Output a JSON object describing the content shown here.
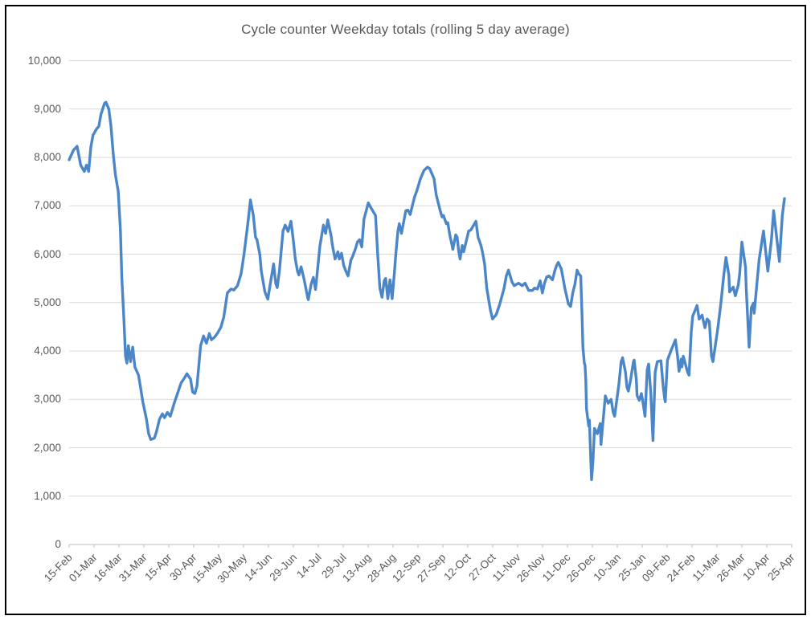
{
  "chart_data": {
    "type": "line",
    "title": "Cycle counter Weekday totals (rolling 5 day average)",
    "xlabel": "",
    "ylabel": "",
    "ylim": [
      0,
      10000
    ],
    "y_tick_labels": [
      "0",
      "1,000",
      "2,000",
      "3,000",
      "4,000",
      "5,000",
      "6,000",
      "7,000",
      "8,000",
      "9,000",
      "10,000"
    ],
    "x_tick_labels": [
      "15-Feb",
      "01-Mar",
      "16-Mar",
      "31-Mar",
      "15-Apr",
      "30-Apr",
      "15-May",
      "30-May",
      "14-Jun",
      "29-Jun",
      "14-Jul",
      "29-Jul",
      "13-Aug",
      "28-Aug",
      "12-Sep",
      "27-Sep",
      "12-Oct",
      "27-Oct",
      "11-Nov",
      "26-Nov",
      "11-Dec",
      "26-Dec",
      "10-Jan",
      "25-Jan",
      "09-Feb",
      "24-Feb",
      "11-Mar",
      "26-Mar",
      "10-Apr",
      "25-Apr"
    ],
    "grid": true,
    "legend_position": "none",
    "colors": {
      "line": "#4a86c8",
      "grid": "#d9d9d9",
      "axis": "#bfbfbf",
      "text": "#595959",
      "frame": "#000000"
    },
    "series": [
      {
        "points": [
          [
            0.0,
            7950
          ],
          [
            0.006,
            8150
          ],
          [
            0.011,
            8230
          ],
          [
            0.016,
            7840
          ],
          [
            0.021,
            7710
          ],
          [
            0.024,
            7840
          ],
          [
            0.027,
            7710
          ],
          [
            0.03,
            8210
          ],
          [
            0.033,
            8460
          ],
          [
            0.038,
            8590
          ],
          [
            0.041,
            8640
          ],
          [
            0.044,
            8890
          ],
          [
            0.049,
            9120
          ],
          [
            0.051,
            9140
          ],
          [
            0.055,
            9000
          ],
          [
            0.058,
            8640
          ],
          [
            0.061,
            8090
          ],
          [
            0.064,
            7650
          ],
          [
            0.068,
            7300
          ],
          [
            0.071,
            6500
          ],
          [
            0.073,
            5500
          ],
          [
            0.076,
            4600
          ],
          [
            0.078,
            3900
          ],
          [
            0.08,
            3750
          ],
          [
            0.082,
            4110
          ],
          [
            0.085,
            3780
          ],
          [
            0.088,
            4080
          ],
          [
            0.091,
            3670
          ],
          [
            0.096,
            3500
          ],
          [
            0.099,
            3230
          ],
          [
            0.102,
            2950
          ],
          [
            0.107,
            2590
          ],
          [
            0.11,
            2290
          ],
          [
            0.113,
            2170
          ],
          [
            0.118,
            2200
          ],
          [
            0.121,
            2340
          ],
          [
            0.125,
            2590
          ],
          [
            0.129,
            2700
          ],
          [
            0.132,
            2620
          ],
          [
            0.136,
            2730
          ],
          [
            0.14,
            2650
          ],
          [
            0.146,
            2950
          ],
          [
            0.149,
            3080
          ],
          [
            0.155,
            3340
          ],
          [
            0.16,
            3450
          ],
          [
            0.163,
            3530
          ],
          [
            0.168,
            3420
          ],
          [
            0.171,
            3150
          ],
          [
            0.174,
            3120
          ],
          [
            0.177,
            3280
          ],
          [
            0.18,
            3780
          ],
          [
            0.182,
            4110
          ],
          [
            0.186,
            4310
          ],
          [
            0.19,
            4160
          ],
          [
            0.194,
            4360
          ],
          [
            0.197,
            4230
          ],
          [
            0.201,
            4280
          ],
          [
            0.205,
            4360
          ],
          [
            0.21,
            4490
          ],
          [
            0.214,
            4700
          ],
          [
            0.219,
            5200
          ],
          [
            0.224,
            5280
          ],
          [
            0.228,
            5260
          ],
          [
            0.233,
            5350
          ],
          [
            0.238,
            5600
          ],
          [
            0.242,
            6000
          ],
          [
            0.247,
            6600
          ],
          [
            0.251,
            7120
          ],
          [
            0.255,
            6800
          ],
          [
            0.258,
            6350
          ],
          [
            0.26,
            6300
          ],
          [
            0.264,
            5990
          ],
          [
            0.266,
            5650
          ],
          [
            0.269,
            5390
          ],
          [
            0.271,
            5220
          ],
          [
            0.275,
            5070
          ],
          [
            0.279,
            5440
          ],
          [
            0.283,
            5800
          ],
          [
            0.286,
            5390
          ],
          [
            0.288,
            5310
          ],
          [
            0.291,
            5650
          ],
          [
            0.296,
            6480
          ],
          [
            0.299,
            6600
          ],
          [
            0.303,
            6470
          ],
          [
            0.307,
            6680
          ],
          [
            0.31,
            6320
          ],
          [
            0.313,
            5900
          ],
          [
            0.316,
            5650
          ],
          [
            0.318,
            5570
          ],
          [
            0.321,
            5740
          ],
          [
            0.325,
            5490
          ],
          [
            0.33,
            5110
          ],
          [
            0.331,
            5060
          ],
          [
            0.335,
            5390
          ],
          [
            0.338,
            5520
          ],
          [
            0.341,
            5270
          ],
          [
            0.347,
            6170
          ],
          [
            0.352,
            6600
          ],
          [
            0.355,
            6430
          ],
          [
            0.358,
            6710
          ],
          [
            0.363,
            6350
          ],
          [
            0.364,
            6220
          ],
          [
            0.368,
            5900
          ],
          [
            0.372,
            6050
          ],
          [
            0.374,
            5900
          ],
          [
            0.377,
            6020
          ],
          [
            0.38,
            5770
          ],
          [
            0.383,
            5650
          ],
          [
            0.386,
            5550
          ],
          [
            0.39,
            5880
          ],
          [
            0.392,
            5940
          ],
          [
            0.396,
            6100
          ],
          [
            0.399,
            6250
          ],
          [
            0.402,
            6300
          ],
          [
            0.405,
            6150
          ],
          [
            0.408,
            6720
          ],
          [
            0.414,
            7060
          ],
          [
            0.418,
            6950
          ],
          [
            0.424,
            6800
          ],
          [
            0.427,
            6000
          ],
          [
            0.43,
            5300
          ],
          [
            0.433,
            5110
          ],
          [
            0.436,
            5450
          ],
          [
            0.438,
            5500
          ],
          [
            0.441,
            5080
          ],
          [
            0.444,
            5470
          ],
          [
            0.447,
            5080
          ],
          [
            0.45,
            5600
          ],
          [
            0.452,
            5970
          ],
          [
            0.455,
            6470
          ],
          [
            0.457,
            6630
          ],
          [
            0.46,
            6430
          ],
          [
            0.466,
            6900
          ],
          [
            0.469,
            6910
          ],
          [
            0.472,
            6820
          ],
          [
            0.478,
            7180
          ],
          [
            0.481,
            7300
          ],
          [
            0.486,
            7550
          ],
          [
            0.491,
            7730
          ],
          [
            0.496,
            7800
          ],
          [
            0.499,
            7770
          ],
          [
            0.505,
            7560
          ],
          [
            0.508,
            7230
          ],
          [
            0.513,
            6930
          ],
          [
            0.516,
            6770
          ],
          [
            0.518,
            6800
          ],
          [
            0.522,
            6630
          ],
          [
            0.524,
            6650
          ],
          [
            0.527,
            6380
          ],
          [
            0.53,
            6180
          ],
          [
            0.531,
            6100
          ],
          [
            0.535,
            6400
          ],
          [
            0.537,
            6350
          ],
          [
            0.539,
            6070
          ],
          [
            0.541,
            5900
          ],
          [
            0.544,
            6180
          ],
          [
            0.546,
            6050
          ],
          [
            0.55,
            6300
          ],
          [
            0.553,
            6480
          ],
          [
            0.556,
            6500
          ],
          [
            0.563,
            6680
          ],
          [
            0.566,
            6350
          ],
          [
            0.57,
            6180
          ],
          [
            0.572,
            6050
          ],
          [
            0.575,
            5800
          ],
          [
            0.578,
            5300
          ],
          [
            0.583,
            4850
          ],
          [
            0.586,
            4660
          ],
          [
            0.591,
            4750
          ],
          [
            0.596,
            4970
          ],
          [
            0.602,
            5300
          ],
          [
            0.605,
            5550
          ],
          [
            0.608,
            5670
          ],
          [
            0.613,
            5420
          ],
          [
            0.616,
            5350
          ],
          [
            0.622,
            5400
          ],
          [
            0.627,
            5350
          ],
          [
            0.631,
            5400
          ],
          [
            0.636,
            5250
          ],
          [
            0.641,
            5250
          ],
          [
            0.644,
            5300
          ],
          [
            0.648,
            5280
          ],
          [
            0.652,
            5450
          ],
          [
            0.655,
            5200
          ],
          [
            0.658,
            5400
          ],
          [
            0.661,
            5530
          ],
          [
            0.664,
            5550
          ],
          [
            0.669,
            5470
          ],
          [
            0.672,
            5650
          ],
          [
            0.675,
            5780
          ],
          [
            0.677,
            5830
          ],
          [
            0.681,
            5700
          ],
          [
            0.683,
            5550
          ],
          [
            0.686,
            5300
          ],
          [
            0.691,
            4970
          ],
          [
            0.694,
            4920
          ],
          [
            0.697,
            5200
          ],
          [
            0.7,
            5380
          ],
          [
            0.703,
            5670
          ],
          [
            0.705,
            5600
          ],
          [
            0.708,
            5550
          ],
          [
            0.71,
            4650
          ],
          [
            0.711,
            4080
          ],
          [
            0.713,
            3750
          ],
          [
            0.714,
            3700
          ],
          [
            0.715,
            3400
          ],
          [
            0.716,
            2800
          ],
          [
            0.719,
            2450
          ],
          [
            0.72,
            2570
          ],
          [
            0.722,
            1700
          ],
          [
            0.723,
            1340
          ],
          [
            0.725,
            1740
          ],
          [
            0.727,
            2400
          ],
          [
            0.731,
            2290
          ],
          [
            0.735,
            2500
          ],
          [
            0.736,
            2070
          ],
          [
            0.742,
            3070
          ],
          [
            0.746,
            2920
          ],
          [
            0.75,
            3000
          ],
          [
            0.753,
            2730
          ],
          [
            0.755,
            2650
          ],
          [
            0.761,
            3330
          ],
          [
            0.764,
            3780
          ],
          [
            0.766,
            3860
          ],
          [
            0.77,
            3560
          ],
          [
            0.772,
            3250
          ],
          [
            0.774,
            3170
          ],
          [
            0.777,
            3400
          ],
          [
            0.781,
            3780
          ],
          [
            0.782,
            3810
          ],
          [
            0.785,
            3400
          ],
          [
            0.786,
            3080
          ],
          [
            0.789,
            2980
          ],
          [
            0.792,
            3120
          ],
          [
            0.794,
            2950
          ],
          [
            0.797,
            2650
          ],
          [
            0.8,
            3610
          ],
          [
            0.802,
            3730
          ],
          [
            0.805,
            3120
          ],
          [
            0.808,
            2150
          ],
          [
            0.811,
            3560
          ],
          [
            0.814,
            3780
          ],
          [
            0.819,
            3800
          ],
          [
            0.822,
            3280
          ],
          [
            0.824,
            3030
          ],
          [
            0.825,
            2950
          ],
          [
            0.828,
            3810
          ],
          [
            0.83,
            3890
          ],
          [
            0.834,
            4050
          ],
          [
            0.839,
            4230
          ],
          [
            0.842,
            3890
          ],
          [
            0.844,
            3580
          ],
          [
            0.847,
            3830
          ],
          [
            0.848,
            3670
          ],
          [
            0.85,
            3890
          ],
          [
            0.856,
            3560
          ],
          [
            0.858,
            3500
          ],
          [
            0.861,
            4390
          ],
          [
            0.863,
            4720
          ],
          [
            0.869,
            4940
          ],
          [
            0.872,
            4660
          ],
          [
            0.876,
            4740
          ],
          [
            0.88,
            4480
          ],
          [
            0.883,
            4660
          ],
          [
            0.886,
            4610
          ],
          [
            0.889,
            3890
          ],
          [
            0.891,
            3780
          ],
          [
            0.897,
            4390
          ],
          [
            0.898,
            4500
          ],
          [
            0.902,
            4990
          ],
          [
            0.906,
            5570
          ],
          [
            0.909,
            5930
          ],
          [
            0.913,
            5570
          ],
          [
            0.914,
            5220
          ],
          [
            0.919,
            5320
          ],
          [
            0.922,
            5140
          ],
          [
            0.926,
            5360
          ],
          [
            0.928,
            5600
          ],
          [
            0.931,
            6250
          ],
          [
            0.936,
            5740
          ],
          [
            0.937,
            5300
          ],
          [
            0.941,
            4080
          ],
          [
            0.944,
            4890
          ],
          [
            0.947,
            4990
          ],
          [
            0.948,
            4780
          ],
          [
            0.952,
            5410
          ],
          [
            0.955,
            5890
          ],
          [
            0.961,
            6480
          ],
          [
            0.967,
            5650
          ],
          [
            0.972,
            6300
          ],
          [
            0.975,
            6900
          ],
          [
            0.983,
            5850
          ],
          [
            0.987,
            6800
          ],
          [
            0.99,
            7150
          ]
        ]
      }
    ]
  }
}
